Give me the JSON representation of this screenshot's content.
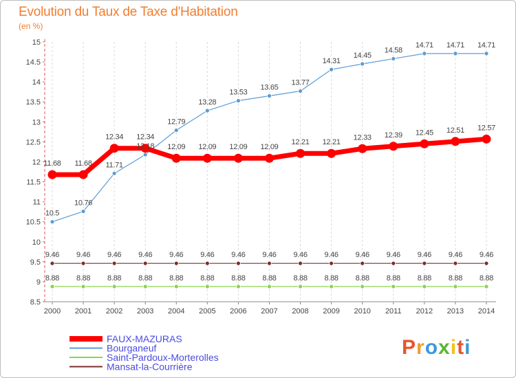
{
  "header": {
    "title": "Evolution du Taux de Taxe d'Habitation",
    "unit": "(en %)"
  },
  "brand": {
    "letters": [
      "P",
      "r",
      "o",
      "x",
      "i",
      "t",
      "i"
    ],
    "colors": [
      "#e8542f",
      "#f39c2b",
      "#3a9ad9",
      "#5bb531",
      "#f0c419",
      "#e8542f",
      "#3a9ad9"
    ]
  },
  "chart_data": {
    "type": "line",
    "title": "Evolution du Taux de Taxe d'Habitation",
    "ylabel": "(en %)",
    "xlabel": "",
    "x": [
      "2000",
      "2001",
      "2002",
      "2003",
      "2004",
      "2005",
      "2006",
      "2007",
      "2008",
      "2009",
      "2010",
      "2011",
      "2012",
      "2013",
      "2014"
    ],
    "ylim": [
      8.5,
      15
    ],
    "yticks": [
      8.5,
      9,
      9.5,
      10,
      10.5,
      11,
      11.5,
      12,
      12.5,
      13,
      13.5,
      14,
      14.5,
      15
    ],
    "ytick_labels": [
      "8.5",
      "9",
      "9.5",
      "10",
      "10.5",
      "11",
      "11.5",
      "12",
      "12.5",
      "13",
      "13.5",
      "14",
      "14.5",
      "15"
    ],
    "grid": "vertical-dashed",
    "legend_position": "bottom-left",
    "series": [
      {
        "name": "FAUX-MAZURAS",
        "color": "#ff0000",
        "emphasis": "thick",
        "values": [
          11.68,
          11.68,
          12.34,
          12.34,
          12.09,
          12.09,
          12.09,
          12.09,
          12.21,
          12.21,
          12.33,
          12.39,
          12.45,
          12.51,
          12.57
        ],
        "labels": [
          "11.68",
          "11.68",
          "12.34",
          "12.34",
          "12.09",
          "12.09",
          "12.09",
          "12.09",
          "12.21",
          "12.21",
          "12.33",
          "12.39",
          "12.45",
          "12.51",
          "12.57"
        ]
      },
      {
        "name": "Bourganeuf",
        "color": "#5b9bd5",
        "emphasis": "thin",
        "values": [
          10.5,
          10.76,
          11.71,
          12.18,
          12.79,
          13.28,
          13.53,
          13.65,
          13.77,
          14.31,
          14.45,
          14.58,
          14.71,
          14.71,
          14.71
        ],
        "labels": [
          "10.5",
          "10.76",
          "11.71",
          "12.18",
          "12.79",
          "13.28",
          "13.53",
          "13.65",
          "13.77",
          "14.31",
          "14.45",
          "14.58",
          "14.71",
          "14.71",
          "14.71"
        ]
      },
      {
        "name": "Saint-Pardoux-Morterolles",
        "color": "#8bd44e",
        "emphasis": "thin",
        "values": [
          8.88,
          8.88,
          8.88,
          8.88,
          8.88,
          8.88,
          8.88,
          8.88,
          8.88,
          8.88,
          8.88,
          8.88,
          8.88,
          8.88,
          8.88
        ],
        "labels": [
          "8.88",
          "8.88",
          "8.88",
          "8.88",
          "8.88",
          "8.88",
          "8.88",
          "8.88",
          "8.88",
          "8.88",
          "8.88",
          "8.88",
          "8.88",
          "8.88",
          "8.88"
        ]
      },
      {
        "name": "Mansat-la-Courrière",
        "color": "#7a2e2e",
        "emphasis": "thin",
        "values": [
          9.46,
          9.46,
          9.46,
          9.46,
          9.46,
          9.46,
          9.46,
          9.46,
          9.46,
          9.46,
          9.46,
          9.46,
          9.46,
          9.46,
          9.46
        ],
        "labels": [
          "9.46",
          "9.46",
          "9.46",
          "9.46",
          "9.46",
          "9.46",
          "9.46",
          "9.46",
          "9.46",
          "9.46",
          "9.46",
          "9.46",
          "9.46",
          "9.46",
          "9.46"
        ]
      }
    ]
  }
}
